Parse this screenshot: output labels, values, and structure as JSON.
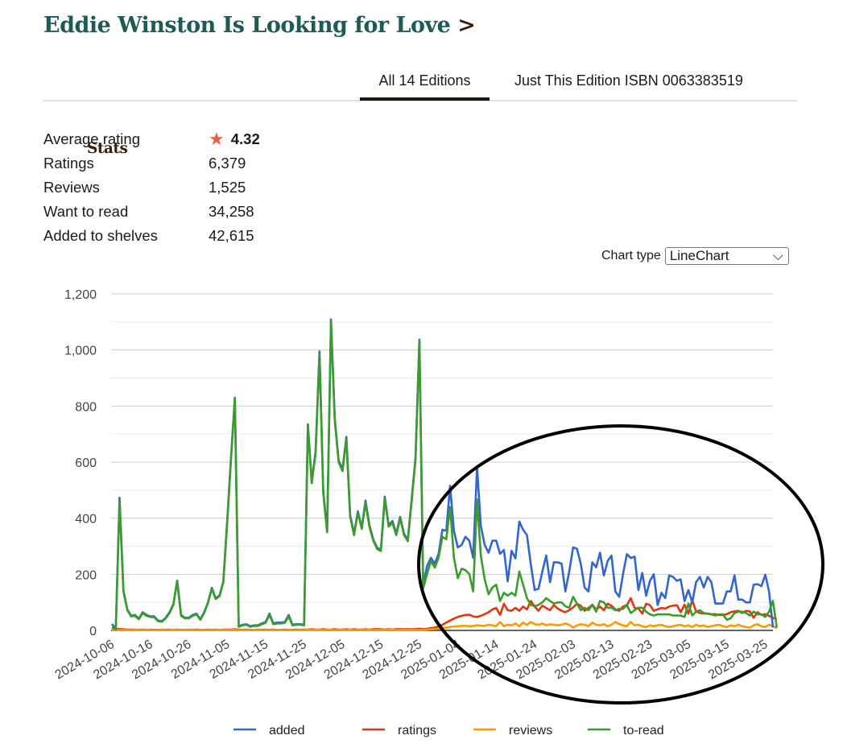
{
  "header": {
    "book_title": "Eddie Winston Is Looking for Love",
    "separator": ">",
    "section": "Stats"
  },
  "tabs": [
    {
      "label": "All 14 Editions",
      "active": true
    },
    {
      "label": "Just This Edition ISBN 0063383519",
      "active": false
    }
  ],
  "stats": {
    "average_rating_label": "Average rating",
    "average_rating": "4.32",
    "star_icon": "★",
    "star_color": "#e8604a",
    "ratings_label": "Ratings",
    "ratings": "6,379",
    "reviews_label": "Reviews",
    "reviews": "1,525",
    "want_to_read_label": "Want to read",
    "want_to_read": "34,258",
    "added_label": "Added to shelves",
    "added": "42,615"
  },
  "chart_type": {
    "label": "Chart type",
    "selected": "LineChart",
    "chevron": "⌵"
  },
  "chart_data": {
    "type": "line",
    "title": "",
    "x_start": "2024-10-06",
    "x_tick_every_days": 10,
    "x_tick_labels": [
      "2024-10-06",
      "2024-10-16",
      "2024-10-26",
      "2024-11-05",
      "2024-11-15",
      "2024-11-25",
      "2024-12-05",
      "2024-12-15",
      "2024-12-25",
      "2025-01-04",
      "2025-01-14",
      "2025-01-24",
      "2025-02-03",
      "2025-02-13",
      "2025-02-23",
      "2025-03-05",
      "2025-03-15",
      "2025-03-25"
    ],
    "y_tick_labels": [
      "0",
      "200",
      "400",
      "600",
      "800",
      "1,000",
      "1,200"
    ],
    "ylim": [
      0,
      1200
    ],
    "grid": true,
    "legend_position": "bottom",
    "series": [
      {
        "name": "added",
        "color": "#3366cc",
        "values": [
          23,
          5,
          473,
          143,
          75,
          52,
          55,
          42,
          65,
          55,
          50,
          50,
          35,
          33,
          45,
          65,
          95,
          178,
          55,
          45,
          45,
          55,
          60,
          40,
          65,
          100,
          152,
          115,
          125,
          175,
          390,
          620,
          830,
          15,
          20,
          22,
          15,
          18,
          18,
          25,
          30,
          60,
          25,
          28,
          28,
          30,
          55,
          20,
          22,
          22,
          20,
          735,
          530,
          640,
          995,
          497,
          353,
          1109,
          756,
          606,
          575,
          690,
          411,
          345,
          425,
          367,
          463,
          376,
          325,
          295,
          288,
          477,
          376,
          390,
          345,
          405,
          345,
          323,
          468,
          617,
          1037,
          160,
          230,
          259,
          238,
          273,
          359,
          355,
          516,
          355,
          296,
          305,
          334,
          320,
          259,
          583,
          373,
          305,
          277,
          320,
          320,
          273,
          287,
          175,
          284,
          257,
          388,
          359,
          340,
          235,
          144,
          148,
          210,
          267,
          172,
          243,
          243,
          238,
          139,
          210,
          296,
          291,
          238,
          153,
          139,
          243,
          225,
          277,
          196,
          248,
          267,
          139,
          120,
          200,
          272,
          258,
          263,
          144,
          205,
          124,
          177,
          200,
          91,
          134,
          115,
          196,
          191,
          177,
          182,
          105,
          144,
          100,
          172,
          191,
          153,
          191,
          172,
          96,
          96,
          96,
          139,
          139,
          196,
          110,
          110,
          100,
          100,
          163,
          165,
          158,
          199,
          139,
          10
        ]
      },
      {
        "name": "ratings",
        "color": "#dc3912",
        "values": [
          8,
          6,
          5,
          4,
          3,
          3,
          3,
          2,
          3,
          2,
          3,
          2,
          2,
          3,
          2,
          3,
          2,
          3,
          2,
          2,
          3,
          2,
          3,
          2,
          2,
          3,
          2,
          3,
          2,
          3,
          3,
          3,
          4,
          3,
          2,
          3,
          2,
          2,
          3,
          2,
          3,
          2,
          3,
          2,
          2,
          3,
          2,
          2,
          3,
          2,
          3,
          3,
          4,
          3,
          3,
          4,
          3,
          3,
          4,
          3,
          3,
          4,
          3,
          4,
          3,
          3,
          4,
          3,
          4,
          5,
          4,
          3,
          4,
          3,
          4,
          5,
          4,
          5,
          4,
          5,
          6,
          5,
          6,
          8,
          10,
          14,
          20,
          28,
          35,
          42,
          48,
          52,
          55,
          56,
          50,
          48,
          52,
          58,
          65,
          75,
          80,
          55,
          95,
          72,
          70,
          80,
          70,
          85,
          75,
          105,
          85,
          70,
          88,
          80,
          72,
          90,
          78,
          70,
          65,
          72,
          82,
          95,
          88,
          70,
          80,
          92,
          75,
          85,
          72,
          95,
          88,
          75,
          70,
          85,
          90,
          115,
          80,
          78,
          60,
          95,
          90,
          70,
          75,
          80,
          78,
          85,
          88,
          90,
          65,
          92,
          60,
          108,
          68,
          62,
          60,
          60,
          58,
          58,
          55,
          55,
          58,
          65,
          68,
          70,
          62,
          70,
          68,
          45,
          65,
          55,
          58,
          52,
          45,
          40
        ]
      },
      {
        "name": "reviews",
        "color": "#ff9900",
        "values": [
          2,
          2,
          1,
          2,
          1,
          1,
          2,
          1,
          1,
          2,
          1,
          1,
          1,
          2,
          1,
          1,
          2,
          1,
          1,
          1,
          2,
          1,
          1,
          1,
          2,
          1,
          1,
          1,
          2,
          1,
          2,
          1,
          2,
          1,
          1,
          1,
          1,
          2,
          1,
          1,
          1,
          1,
          1,
          2,
          1,
          1,
          1,
          1,
          1,
          1,
          1,
          2,
          1,
          2,
          2,
          1,
          2,
          2,
          1,
          2,
          1,
          2,
          2,
          1,
          2,
          1,
          2,
          2,
          1,
          2,
          2,
          1,
          2,
          2,
          1,
          2,
          2,
          2,
          2,
          2,
          2,
          2,
          3,
          4,
          5,
          6,
          8,
          10,
          12,
          14,
          15,
          16,
          17,
          15,
          16,
          18,
          17,
          16,
          20,
          18,
          15,
          30,
          15,
          20,
          18,
          25,
          15,
          28,
          20,
          30,
          22,
          20,
          25,
          18,
          22,
          20,
          18,
          20,
          25,
          20,
          10,
          18,
          22,
          20,
          15,
          28,
          20,
          18,
          22,
          15,
          20,
          30,
          22,
          18,
          15,
          30,
          18,
          20,
          15,
          12,
          18,
          15,
          18,
          20,
          15,
          12,
          15,
          18,
          20,
          15,
          18,
          12,
          20,
          15,
          18,
          12,
          15,
          18,
          20,
          15,
          12,
          18,
          15,
          20,
          15,
          12,
          10,
          18,
          22,
          15,
          12,
          20,
          15,
          8
        ]
      },
      {
        "name": "to-read",
        "color": "#3d9a2c",
        "values": [
          10,
          4,
          460,
          140,
          72,
          50,
          52,
          40,
          62,
          52,
          48,
          47,
          33,
          31,
          43,
          62,
          92,
          175,
          52,
          43,
          43,
          52,
          57,
          38,
          62,
          97,
          148,
          112,
          122,
          172,
          385,
          615,
          828,
          13,
          18,
          20,
          13,
          16,
          16,
          22,
          27,
          55,
          22,
          25,
          25,
          27,
          50,
          18,
          20,
          20,
          18,
          728,
          525,
          632,
          985,
          490,
          350,
          1100,
          748,
          600,
          568,
          684,
          405,
          340,
          420,
          362,
          455,
          370,
          320,
          290,
          283,
          470,
          370,
          383,
          340,
          400,
          340,
          318,
          460,
          610,
          1030,
          150,
          200,
          247,
          224,
          259,
          334,
          325,
          440,
          259,
          186,
          220,
          215,
          201,
          139,
          468,
          267,
          182,
          129,
          153,
          163,
          105,
          134,
          124,
          134,
          124,
          210,
          163,
          115,
          91,
          86,
          91,
          100,
          115,
          105,
          96,
          100,
          100,
          86,
          81,
          120,
          96,
          72,
          81,
          72,
          91,
          67,
          105,
          100,
          81,
          81,
          72,
          77,
          77,
          91,
          62,
          72,
          81,
          81,
          67,
          57,
          53,
          57,
          57,
          57,
          57,
          53,
          53,
          53,
          48,
          96,
          53,
          67,
          72,
          62,
          59,
          57,
          53,
          57,
          57,
          38,
          43,
          62,
          67,
          67,
          62,
          53,
          67,
          57,
          57,
          48,
          67,
          105,
          10
        ]
      }
    ]
  }
}
